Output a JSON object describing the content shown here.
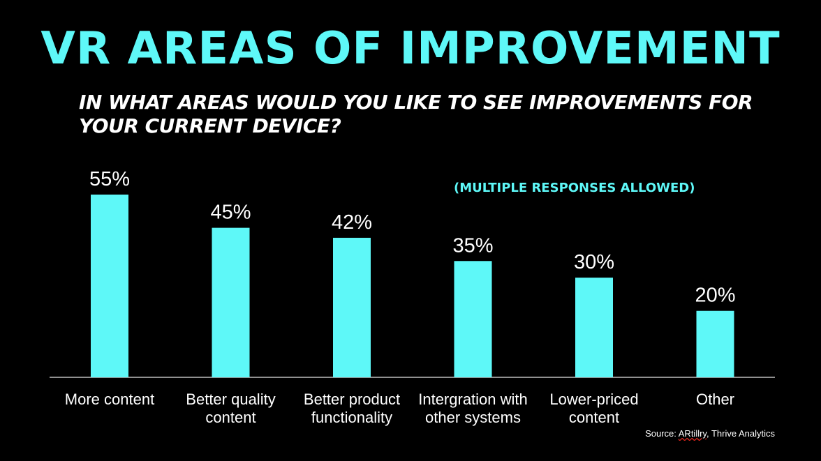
{
  "title": "VR AREAS OF IMPROVEMENT",
  "subtitle_line1": "IN WHAT AREAS WOULD YOU LIKE TO SEE IMPROVEMENTS FOR",
  "subtitle_line2": "YOUR CURRENT DEVICE?",
  "note": "(MULTIPLE RESPONSES ALLOWED)",
  "source_prefix": "Source: ",
  "source_brand": "ARtillry",
  "source_suffix": ", Thrive Analytics",
  "colors": {
    "bar": "#5ef8f8",
    "background": "#000000",
    "text": "#ffffff"
  },
  "chart_data": {
    "type": "bar",
    "title": "VR AREAS OF IMPROVEMENT",
    "categories": [
      [
        "More content"
      ],
      [
        "Better quality",
        "content"
      ],
      [
        "Better product",
        "functionality"
      ],
      [
        "Intergration with",
        "other systems"
      ],
      [
        "Lower-priced",
        "content"
      ],
      [
        "Other"
      ]
    ],
    "values": [
      55,
      45,
      42,
      35,
      30,
      20
    ],
    "value_labels": [
      "55%",
      "45%",
      "42%",
      "35%",
      "30%",
      "20%"
    ],
    "ylim": [
      0,
      100
    ],
    "xlabel": "",
    "ylabel": ""
  }
}
